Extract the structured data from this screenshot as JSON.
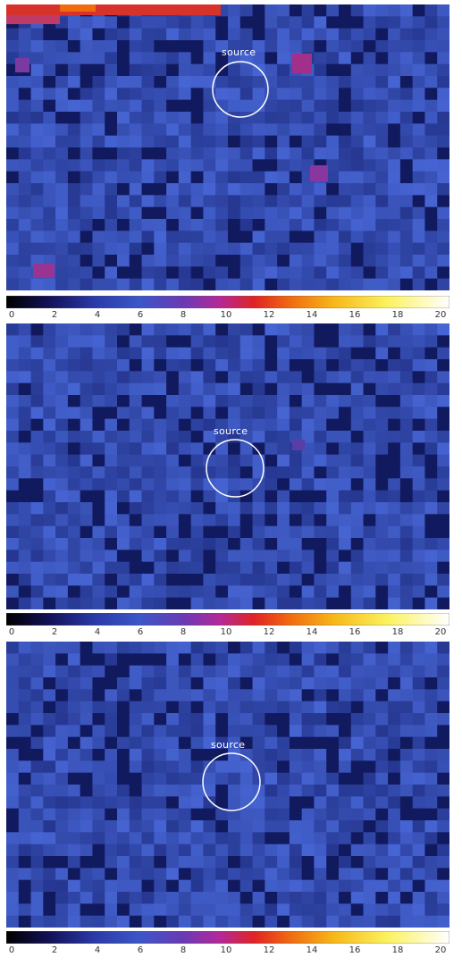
{
  "panels": [
    {
      "source_label": "source",
      "colorbar_ticks": [
        "0",
        "2",
        "4",
        "6",
        "8",
        "10",
        "12",
        "14",
        "16",
        "18",
        "20"
      ]
    },
    {
      "source_label": "source",
      "colorbar_ticks": [
        "0",
        "2",
        "4",
        "6",
        "8",
        "10",
        "12",
        "14",
        "16",
        "18",
        "20"
      ]
    },
    {
      "source_label": "source",
      "colorbar_ticks": [
        "0",
        "2",
        "4",
        "6",
        "8",
        "10",
        "12",
        "14",
        "16",
        "18",
        "20"
      ]
    }
  ],
  "colors": {
    "colormap": [
      "#000000",
      "#14125a",
      "#2a3aa8",
      "#3c56c8",
      "#6a3ab4",
      "#b2299a",
      "#e02424",
      "#f06a10",
      "#f7b81a",
      "#fbf25e",
      "#ffffff"
    ],
    "circle": "#ffffff"
  }
}
